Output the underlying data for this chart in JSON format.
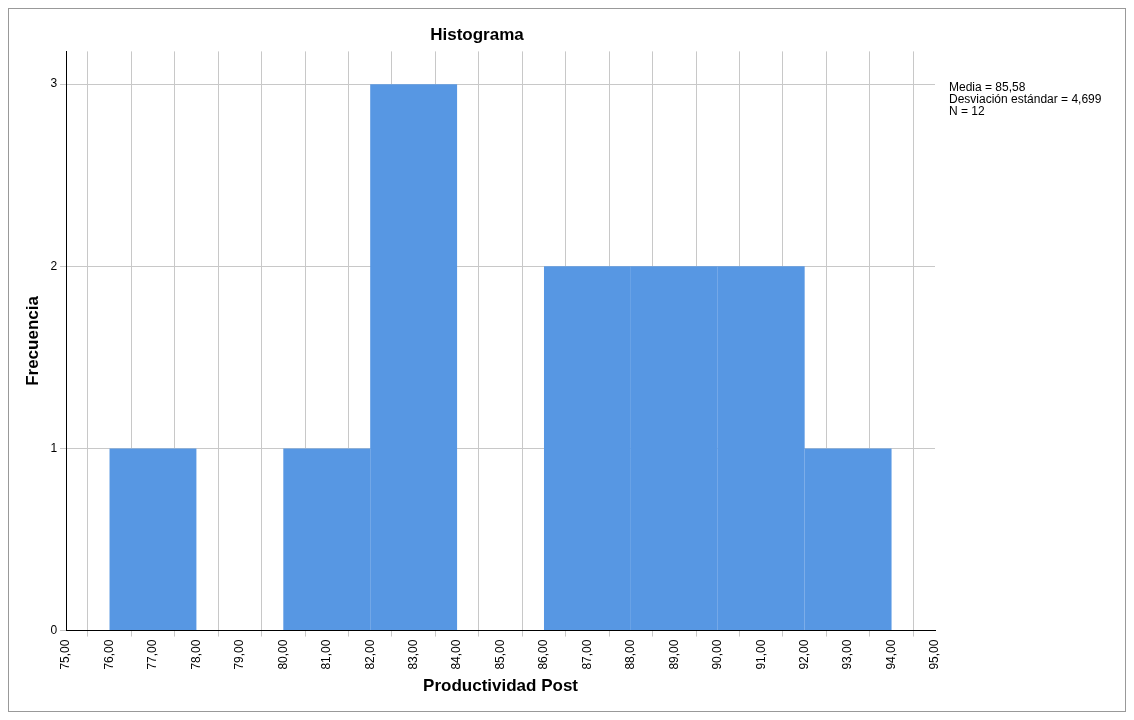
{
  "chart_data": {
    "type": "histogram",
    "title": "Histograma",
    "xlabel": "Productividad Post",
    "ylabel": "Frecuencia",
    "bins": [
      76,
      78,
      80,
      82,
      84,
      86,
      88,
      90,
      92,
      94
    ],
    "values": [
      1,
      0,
      1,
      3,
      0,
      2,
      2,
      2,
      1
    ],
    "color": "#5797e3",
    "xlim": [
      75,
      95
    ],
    "xticks": [
      {
        "value": 75,
        "label": "75,00"
      },
      {
        "value": 76,
        "label": "76,00"
      },
      {
        "value": 77,
        "label": "77,00"
      },
      {
        "value": 78,
        "label": "78,00"
      },
      {
        "value": 79,
        "label": "79,00"
      },
      {
        "value": 80,
        "label": "80,00"
      },
      {
        "value": 81,
        "label": "81,00"
      },
      {
        "value": 82,
        "label": "82,00"
      },
      {
        "value": 83,
        "label": "83,00"
      },
      {
        "value": 84,
        "label": "84,00"
      },
      {
        "value": 85,
        "label": "85,00"
      },
      {
        "value": 86,
        "label": "86,00"
      },
      {
        "value": 87,
        "label": "87,00"
      },
      {
        "value": 88,
        "label": "88,00"
      },
      {
        "value": 89,
        "label": "89,00"
      },
      {
        "value": 90,
        "label": "90,00"
      },
      {
        "value": 91,
        "label": "91,00"
      },
      {
        "value": 92,
        "label": "92,00"
      },
      {
        "value": 93,
        "label": "93,00"
      },
      {
        "value": 94,
        "label": "94,00"
      },
      {
        "value": 95,
        "label": "95,00"
      }
    ],
    "ylim": [
      0,
      3.18
    ],
    "yticks": [
      0,
      1,
      2,
      3
    ],
    "grid": true,
    "legend": false,
    "annotations": [
      "Media = 85,58",
      "Desviación estándar = 4,699",
      "N = 12"
    ]
  }
}
